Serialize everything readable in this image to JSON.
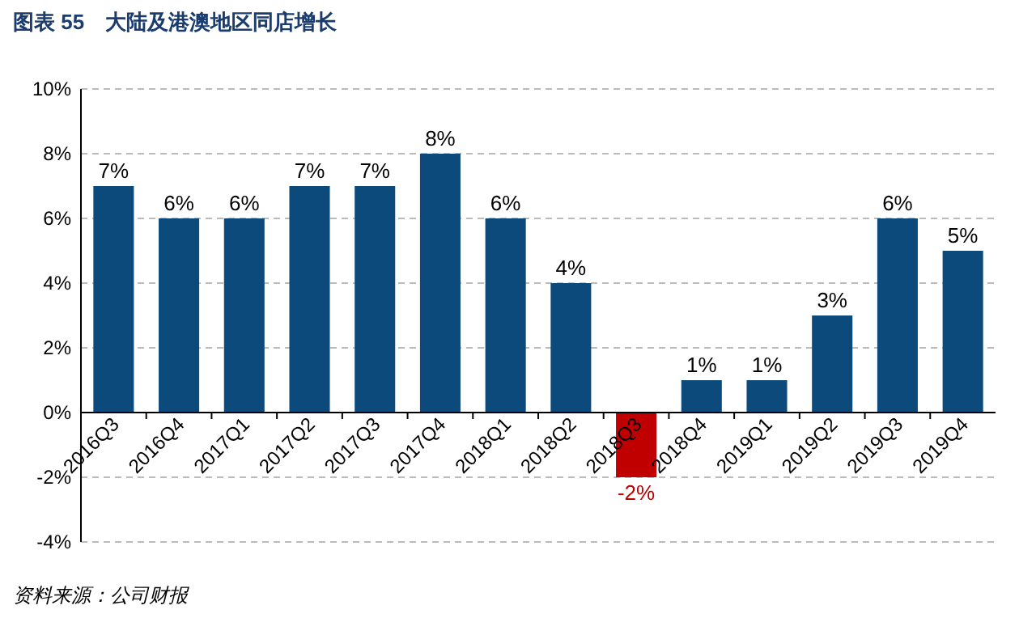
{
  "chart_data": {
    "type": "bar",
    "title": "图表 55　大陆及港澳地区同店增长",
    "categories": [
      "2016Q3",
      "2016Q4",
      "2017Q1",
      "2017Q2",
      "2017Q3",
      "2017Q4",
      "2018Q1",
      "2018Q2",
      "2018Q3",
      "2018Q4",
      "2019Q1",
      "2019Q2",
      "2019Q3",
      "2019Q4"
    ],
    "values": [
      7,
      6,
      6,
      7,
      7,
      8,
      6,
      4,
      -2,
      1,
      1,
      3,
      6,
      5
    ],
    "colors": [
      "#0d4a7c",
      "#0d4a7c",
      "#0d4a7c",
      "#0d4a7c",
      "#0d4a7c",
      "#0d4a7c",
      "#0d4a7c",
      "#0d4a7c",
      "#c00000",
      "#0d4a7c",
      "#0d4a7c",
      "#0d4a7c",
      "#0d4a7c",
      "#0d4a7c"
    ],
    "value_labels": [
      "7%",
      "6%",
      "6%",
      "7%",
      "7%",
      "8%",
      "6%",
      "4%",
      "-2%",
      "1%",
      "1%",
      "3%",
      "6%",
      "5%"
    ],
    "ylim": [
      -4,
      10
    ],
    "yticks": [
      {
        "value": -4,
        "label": "-4%"
      },
      {
        "value": -2,
        "label": "-2%"
      },
      {
        "value": 0,
        "label": "0%"
      },
      {
        "value": 2,
        "label": "2%"
      },
      {
        "value": 4,
        "label": "4%"
      },
      {
        "value": 6,
        "label": "6%"
      },
      {
        "value": 8,
        "label": "8%"
      },
      {
        "value": 10,
        "label": "10%"
      }
    ],
    "grid": "y",
    "annotations": [
      "资料来源：公司财报"
    ]
  }
}
